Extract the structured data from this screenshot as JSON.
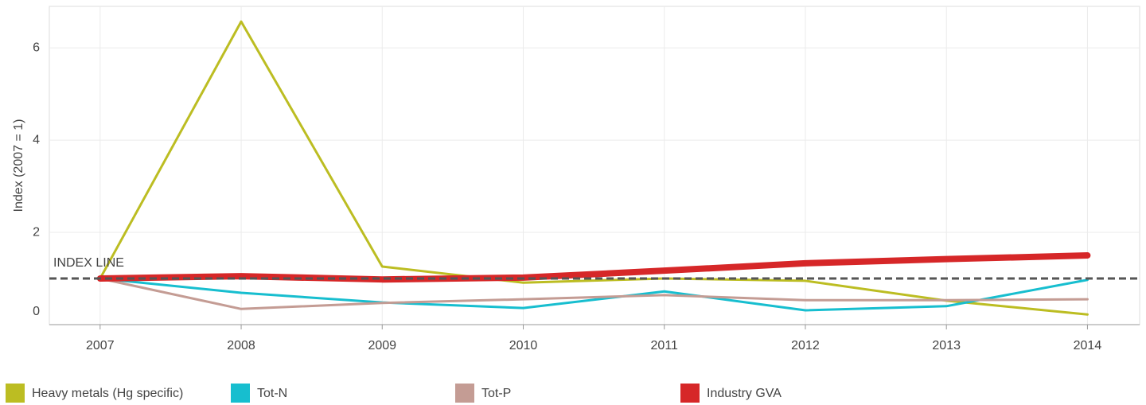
{
  "chart_data": {
    "type": "line",
    "y_label": "Index (2007 = 1)",
    "x": [
      2007,
      2008,
      2009,
      2010,
      2011,
      2012,
      2013,
      2014
    ],
    "xlim": [
      2006.64,
      2014.37
    ],
    "xticks": [
      2007,
      2008,
      2009,
      2010,
      2011,
      2012,
      2013,
      2014
    ],
    "ylim": [
      0,
      6.9
    ],
    "yticks": [
      0,
      2,
      4,
      6
    ],
    "grid": true,
    "legend": "bottom",
    "index_line": {
      "value": 1,
      "label": "INDEX LINE"
    },
    "series": [
      {
        "name": "Heavy metals (Hg specific)",
        "color": "#bcbd22",
        "width": 3,
        "values": [
          1,
          6.57,
          1.26,
          0.91,
          1.0,
          0.95,
          0.52,
          0.22
        ]
      },
      {
        "name": "Tot-N",
        "color": "#17becf",
        "width": 3,
        "values": [
          1,
          0.69,
          0.48,
          0.36,
          0.72,
          0.31,
          0.4,
          0.97
        ]
      },
      {
        "name": "Tot-P",
        "color": "#c49c94",
        "width": 3,
        "values": [
          1,
          0.34,
          0.47,
          0.55,
          0.64,
          0.53,
          0.53,
          0.55
        ]
      },
      {
        "name": "Industry GVA",
        "color": "#d62728",
        "width": 8,
        "values": [
          1,
          1.05,
          0.98,
          1.02,
          1.17,
          1.33,
          1.42,
          1.5
        ]
      }
    ]
  }
}
